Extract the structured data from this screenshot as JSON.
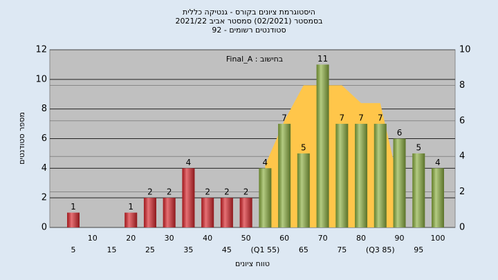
{
  "chart_data": {
    "type": "bar",
    "title": [
      "היסטוגרמת ציונים בקורס - גנטיקה כללית",
      "בסמסטר  (02/2021)  סמסטר אביב 2021/22",
      "סטודנטים רשומים - 92"
    ],
    "annotation": "Final_A : בחישוב",
    "y_label": "מספר סטודנטים",
    "x_label": "טווח ציונים",
    "categories": [
      "5",
      "10",
      "15",
      "20",
      "25",
      "30",
      "35",
      "40",
      "45",
      "50",
      "(Q1 55)",
      "60",
      "65",
      "70",
      "75",
      "80",
      "(Q3 85)",
      "90",
      "95",
      "100"
    ],
    "values": [
      1,
      0,
      0,
      1,
      2,
      2,
      4,
      2,
      2,
      2,
      4,
      7,
      5,
      11,
      7,
      7,
      7,
      6,
      5,
      4
    ],
    "colors": [
      "#d9252b",
      "#d9252b",
      "#d9252b",
      "#d9252b",
      "#d9252b",
      "#d9252b",
      "#d9252b",
      "#d9252b",
      "#d9252b",
      "#d9252b",
      "#8cb040",
      "#8cb040",
      "#8cb040",
      "#8cb040",
      "#8cb040",
      "#8cb040",
      "#8cb040",
      "#8cb040",
      "#8cb040",
      "#8cb040"
    ],
    "area": {
      "axis": "y2",
      "color": "#ffc64a",
      "values": [
        null,
        null,
        null,
        null,
        null,
        null,
        null,
        null,
        null,
        null,
        3.5,
        6,
        8,
        8,
        8,
        7,
        7,
        2.3,
        null,
        null
      ]
    },
    "ylim": [
      0,
      12
    ],
    "yticks": [
      0,
      2,
      4,
      6,
      8,
      10,
      12
    ],
    "y2lim": [
      0,
      10
    ],
    "y2ticks": [
      0,
      2,
      4,
      6,
      8,
      10
    ],
    "grid": true
  }
}
